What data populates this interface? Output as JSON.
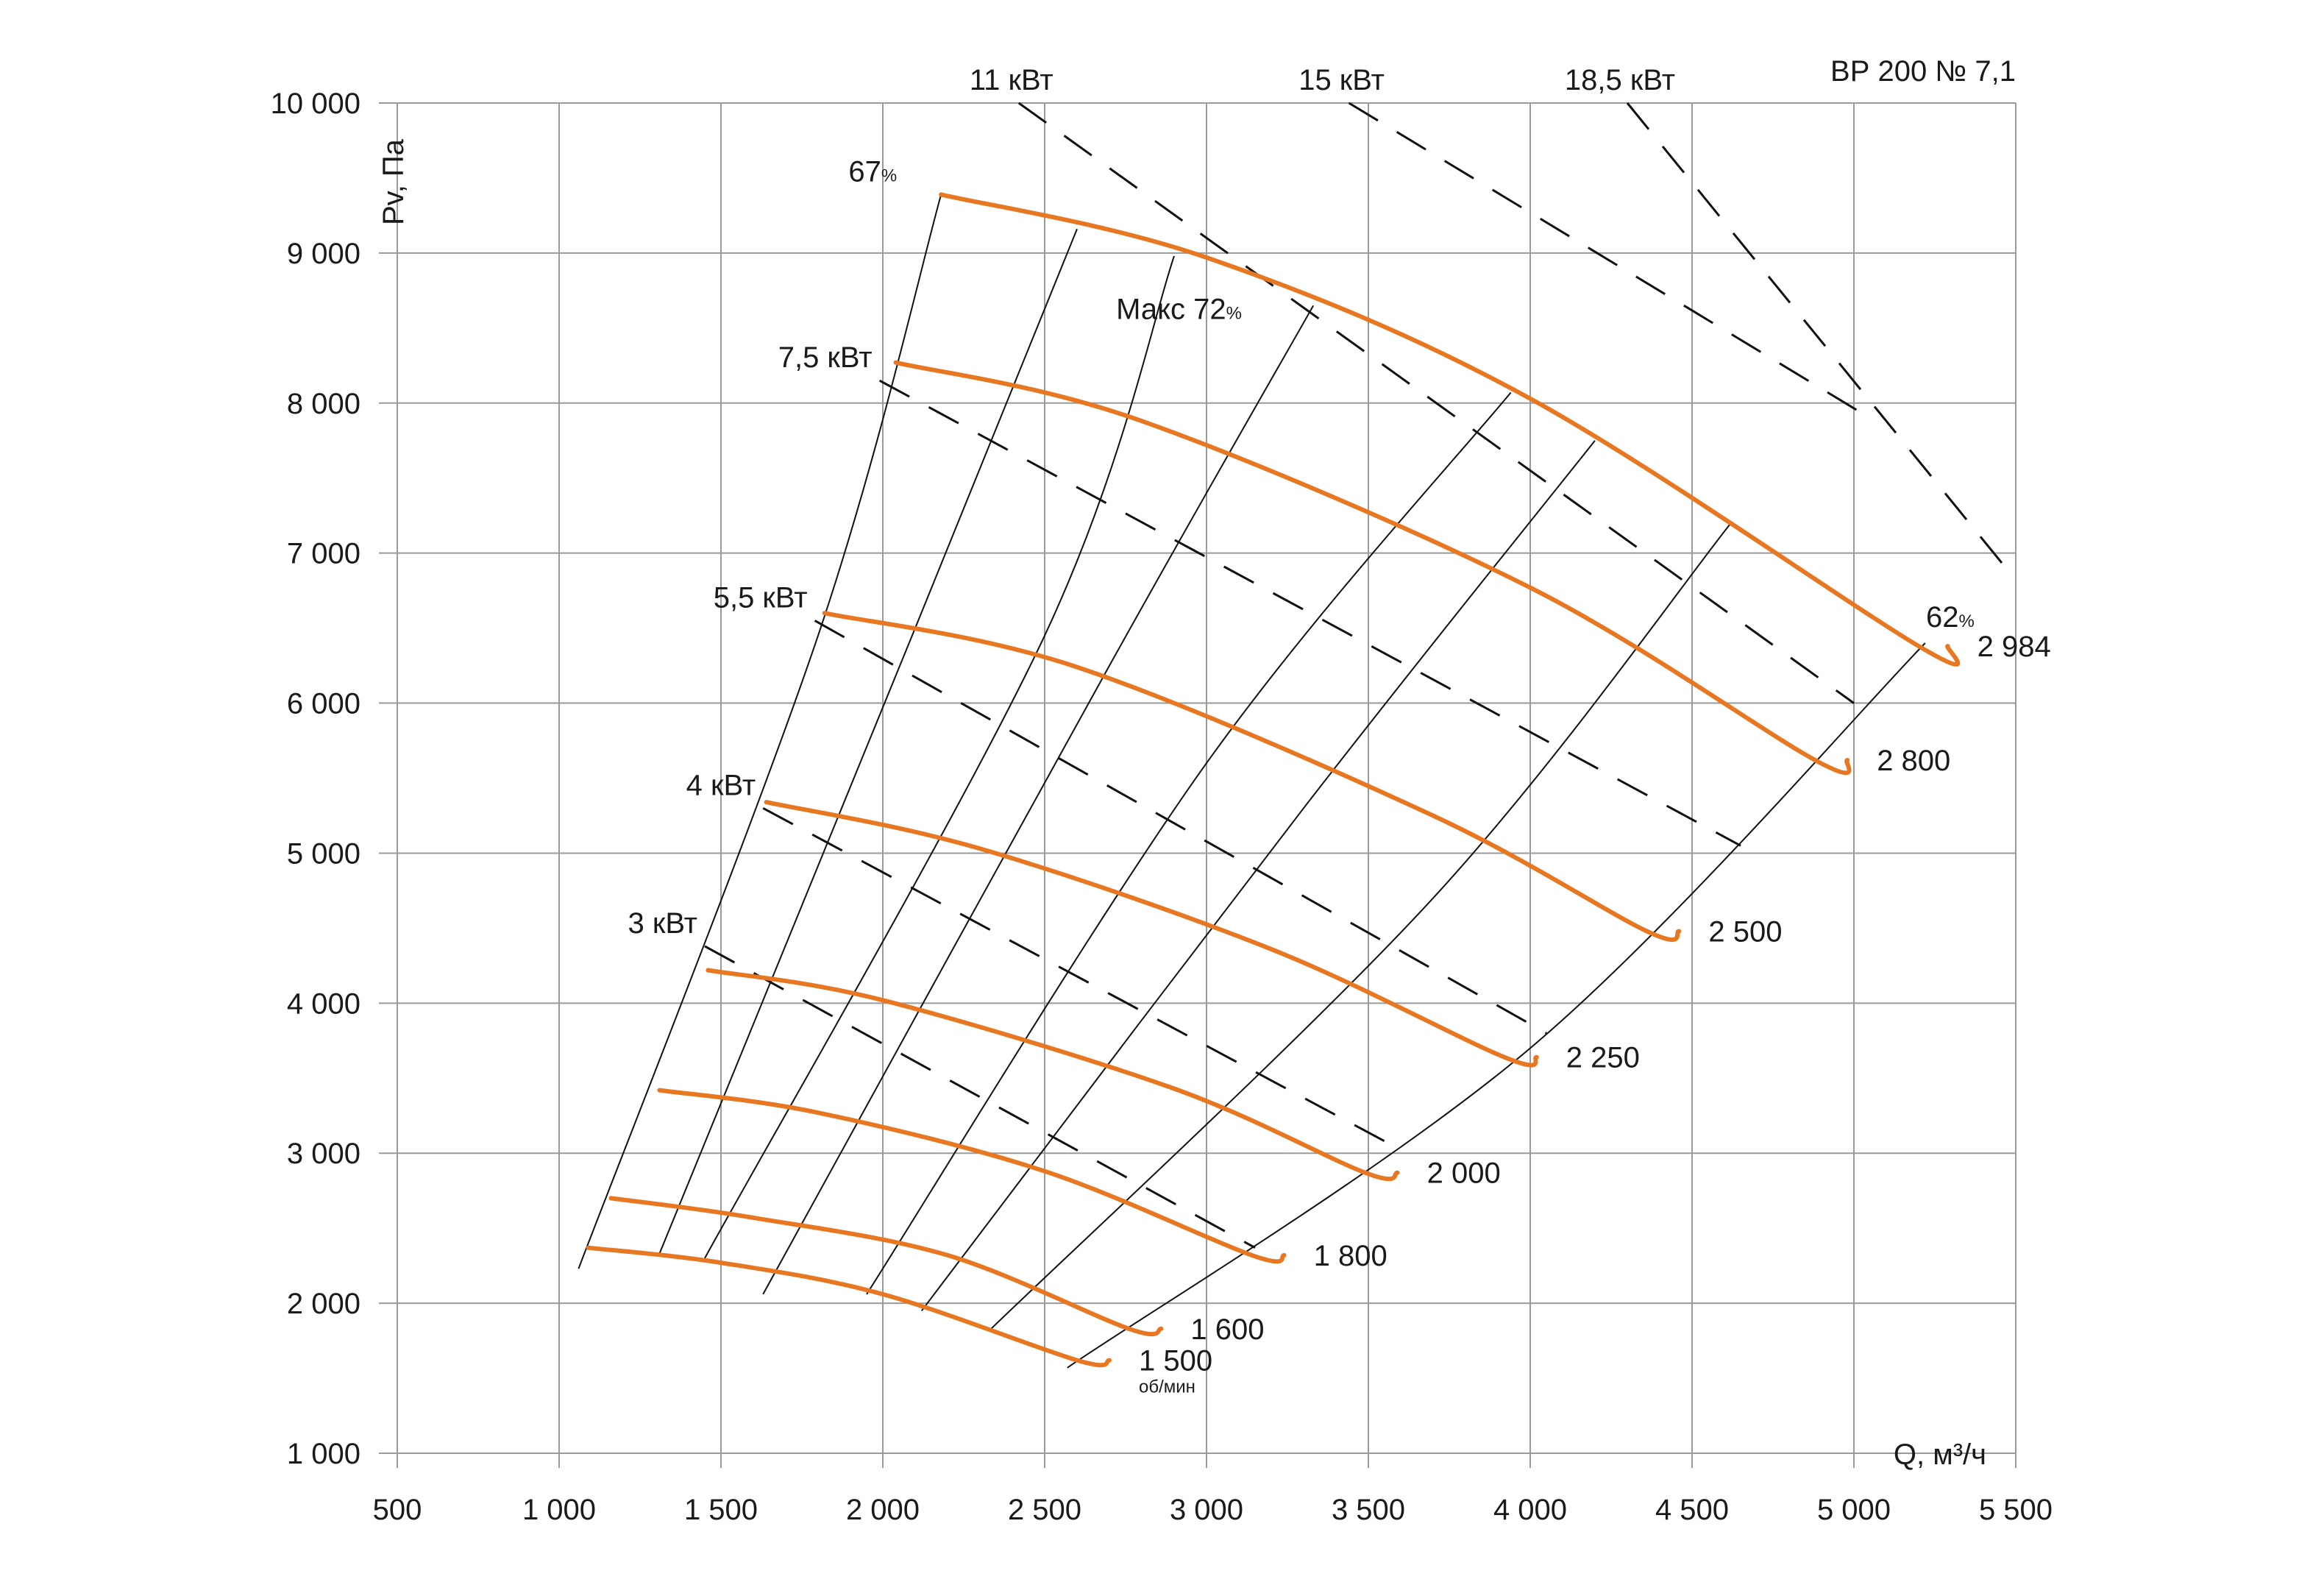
{
  "chart_data": {
    "type": "line",
    "title": "ВР  200 № 7,1",
    "xlabel": "Q, м³/ч",
    "ylabel": "Pv, Па",
    "xlim": [
      500,
      5500
    ],
    "ylim": [
      1000,
      10000
    ],
    "xticks": [
      500,
      1000,
      1500,
      2000,
      2500,
      3000,
      3500,
      4000,
      4500,
      5000,
      5500
    ],
    "xtick_labels": [
      "500",
      "1 000",
      "1 500",
      "2 000",
      "2 500",
      "3 000",
      "3 500",
      "4 000",
      "4 500",
      "5 000",
      "5 500"
    ],
    "yticks": [
      1000,
      2000,
      3000,
      4000,
      5000,
      6000,
      7000,
      8000,
      9000,
      10000
    ],
    "ytick_labels": [
      "1 000",
      "2 000",
      "3 000",
      "4 000",
      "5 000",
      "6 000",
      "7 000",
      "8 000",
      "9 000",
      "10 000"
    ],
    "grid": true,
    "colors": {
      "speed_curve": "#e87722",
      "grid": "#9a9a9a",
      "line": "#111111"
    },
    "speed_unit": "об/мин",
    "speed_curves": [
      {
        "name": "1 500",
        "points": [
          [
            1090,
            2370
          ],
          [
            1500,
            2270
          ],
          [
            2000,
            2060
          ],
          [
            2600,
            1620
          ],
          [
            2700,
            1620
          ]
        ]
      },
      {
        "name": "1 600",
        "points": [
          [
            1160,
            2700
          ],
          [
            1600,
            2570
          ],
          [
            2200,
            2320
          ],
          [
            2760,
            1830
          ],
          [
            2860,
            1830
          ]
        ]
      },
      {
        "name": "1 800",
        "points": [
          [
            1310,
            3420
          ],
          [
            1800,
            3270
          ],
          [
            2500,
            2880
          ],
          [
            3140,
            2320
          ],
          [
            3240,
            2320
          ]
        ]
      },
      {
        "name": "2 000",
        "points": [
          [
            1460,
            4220
          ],
          [
            2000,
            4020
          ],
          [
            2900,
            3430
          ],
          [
            3490,
            2870
          ],
          [
            3590,
            2870
          ]
        ]
      },
      {
        "name": "2 250",
        "points": [
          [
            1640,
            5340
          ],
          [
            2300,
            5030
          ],
          [
            3200,
            4360
          ],
          [
            3920,
            3640
          ],
          [
            4020,
            3640
          ]
        ]
      },
      {
        "name": "2 500",
        "points": [
          [
            1820,
            6600
          ],
          [
            2600,
            6240
          ],
          [
            3700,
            5250
          ],
          [
            4360,
            4480
          ],
          [
            4460,
            4480
          ]
        ]
      },
      {
        "name": "2 800",
        "points": [
          [
            2040,
            8270
          ],
          [
            2800,
            7880
          ],
          [
            4000,
            6770
          ],
          [
            4880,
            5620
          ],
          [
            4980,
            5620
          ]
        ]
      },
      {
        "name": "2 984",
        "points": [
          [
            2180,
            9390
          ],
          [
            3000,
            8970
          ],
          [
            4000,
            8030
          ],
          [
            5200,
            6380
          ],
          [
            5290,
            6380
          ]
        ]
      }
    ],
    "system_curves": [
      [
        [
          1060,
          2230
        ],
        [
          1800,
          6450
        ],
        [
          2180,
          9390
        ]
      ],
      [
        [
          1310,
          2330
        ],
        [
          2100,
          6500
        ],
        [
          2600,
          9160
        ]
      ],
      [
        [
          1450,
          2300
        ],
        [
          2500,
          6450
        ],
        [
          2900,
          8980
        ]
      ],
      [
        [
          1630,
          2060
        ],
        [
          2700,
          6250
        ],
        [
          3330,
          8650
        ]
      ],
      [
        [
          1950,
          2060
        ],
        [
          3000,
          5600
        ],
        [
          3940,
          8070
        ]
      ],
      [
        [
          2120,
          1950
        ],
        [
          3300,
          5300
        ],
        [
          4200,
          7750
        ]
      ],
      [
        [
          2330,
          1820
        ],
        [
          3700,
          4700
        ],
        [
          4620,
          7200
        ]
      ],
      [
        [
          2570,
          1570
        ],
        [
          4000,
          3700
        ],
        [
          5220,
          6400
        ]
      ]
    ],
    "power_lines": [
      {
        "name": "3 кВт",
        "points": [
          [
            1450,
            4380
          ],
          [
            3150,
            2370
          ]
        ]
      },
      {
        "name": "4 кВт",
        "points": [
          [
            1630,
            5300
          ],
          [
            3550,
            3080
          ]
        ]
      },
      {
        "name": "5,5 кВт",
        "points": [
          [
            1790,
            6550
          ],
          [
            4050,
            3800
          ]
        ]
      },
      {
        "name": "7,5 кВт",
        "points": [
          [
            1990,
            8150
          ],
          [
            4650,
            5050
          ]
        ]
      },
      {
        "name": "11 кВт",
        "points": [
          [
            2420,
            10000
          ],
          [
            5000,
            6000
          ]
        ]
      },
      {
        "name": "15 кВт",
        "points": [
          [
            3440,
            10000
          ],
          [
            5050,
            7900
          ]
        ]
      },
      {
        "name": "18,5 кВт",
        "points": [
          [
            4300,
            10000
          ],
          [
            5470,
            6900
          ]
        ]
      }
    ],
    "annotations": [
      {
        "text": "67",
        "unit": "%",
        "x": 2180,
        "y": 9390
      },
      {
        "text": "Макс 72",
        "unit": "%",
        "x": 3200,
        "y": 8650
      },
      {
        "text": "62",
        "unit": "%",
        "x": 5200,
        "y": 6380
      }
    ]
  }
}
